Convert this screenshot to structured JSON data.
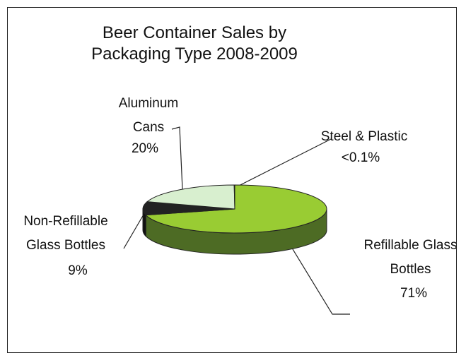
{
  "chart_data": {
    "type": "pie3d",
    "title": "Beer Container Sales by Packaging Type 2008-2009",
    "categories": [
      "Refillable Glass Bottles",
      "Non-Refillable Glass Bottles",
      "Aluminum Cans",
      "Steel & Plastic"
    ],
    "values": [
      71,
      9,
      20,
      0.1
    ],
    "value_labels": [
      "71%",
      "9%",
      "20%",
      "<0.1%"
    ],
    "colors": [
      "#99cc33",
      "#222222",
      "#d8efcf",
      "#8fbc8f"
    ],
    "side_colors": [
      "#4d6b24",
      "#111111",
      "#a9c0a0",
      "#6a8a6a"
    ]
  }
}
